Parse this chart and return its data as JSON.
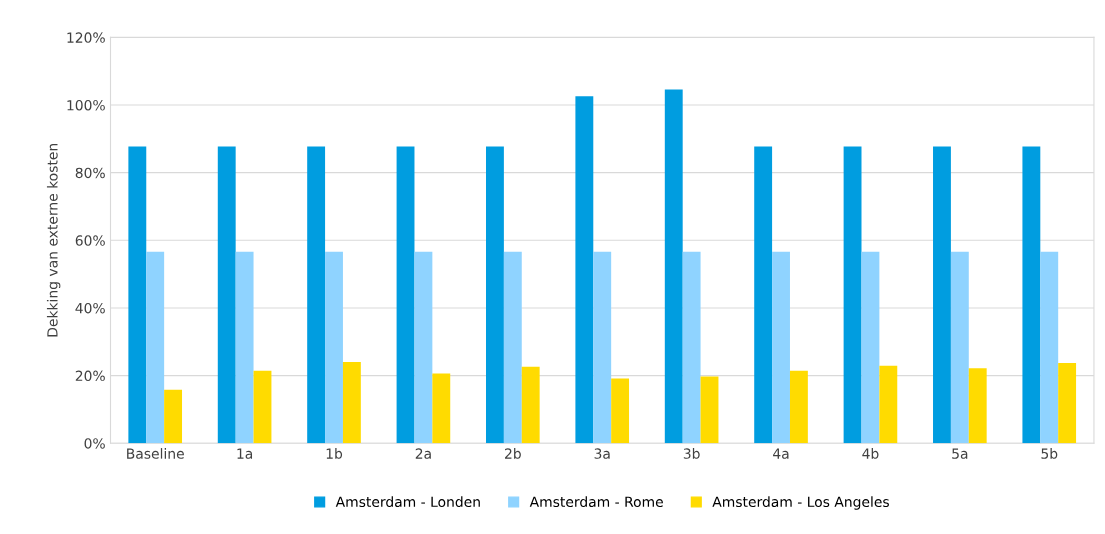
{
  "chart_data": {
    "type": "bar",
    "ylabel": "Dekking van externe kosten",
    "categories": [
      "Baseline",
      "1a",
      "1b",
      "2a",
      "2b",
      "3a",
      "3b",
      "4a",
      "4b",
      "5a",
      "5b"
    ],
    "series": [
      {
        "name": "Amsterdam - Londen",
        "color": "#009de0",
        "values": [
          87.7,
          87.7,
          87.7,
          87.7,
          87.7,
          102.6,
          104.6,
          87.7,
          87.7,
          87.7,
          87.7
        ]
      },
      {
        "name": "Amsterdam - Rome",
        "color": "#8fd3ff",
        "values": [
          56.6,
          56.6,
          56.6,
          56.6,
          56.6,
          56.6,
          56.6,
          56.6,
          56.6,
          56.6,
          56.6
        ]
      },
      {
        "name": "Amsterdam - Los Angeles",
        "color": "#ffdb00",
        "values": [
          15.8,
          21.4,
          24.0,
          20.6,
          22.6,
          19.1,
          19.7,
          21.4,
          22.9,
          22.2,
          23.7
        ]
      }
    ],
    "ylim": [
      0,
      120
    ],
    "yticks": [
      {
        "value": 0,
        "label": "0%"
      },
      {
        "value": 20,
        "label": "20%"
      },
      {
        "value": 40,
        "label": "40%"
      },
      {
        "value": 60,
        "label": "60%"
      },
      {
        "value": 80,
        "label": "80%"
      },
      {
        "value": 100,
        "label": "100%"
      },
      {
        "value": 120,
        "label": "120%"
      }
    ],
    "grid": "y",
    "legend": "bottom"
  }
}
